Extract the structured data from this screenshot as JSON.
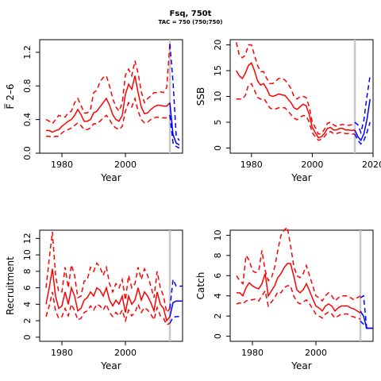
{
  "header": {
    "title": "Fsq, 750t",
    "subtitle": "TAC = 750 (750;750)"
  },
  "chart_data": [
    {
      "type": "line",
      "id": "F",
      "xlabel": "Year",
      "ylabel": "F̅ 2–6",
      "xlim": [
        1973,
        2018
      ],
      "ylim": [
        0,
        1.35
      ],
      "xticks": [
        1980,
        2000
      ],
      "yticks": [
        0,
        0.4,
        0.8,
        1.2
      ],
      "ytick_labels": [
        "0.0",
        "0.4",
        "0.8",
        "1.2"
      ],
      "vline_x": 2014,
      "history_color": "#ff0000",
      "projection_color": "#0000ff",
      "history": {
        "x": [
          1975,
          1976,
          1977,
          1978,
          1979,
          1980,
          1981,
          1982,
          1983,
          1984,
          1985,
          1986,
          1987,
          1988,
          1989,
          1990,
          1991,
          1992,
          1993,
          1994,
          1995,
          1996,
          1997,
          1998,
          1999,
          2000,
          2001,
          2002,
          2003,
          2004,
          2005,
          2006,
          2007,
          2008,
          2009,
          2010,
          2011,
          2012,
          2013,
          2014
        ],
        "median": [
          0.27,
          0.27,
          0.25,
          0.27,
          0.28,
          0.32,
          0.35,
          0.38,
          0.4,
          0.45,
          0.52,
          0.46,
          0.38,
          0.38,
          0.4,
          0.48,
          0.5,
          0.55,
          0.6,
          0.65,
          0.57,
          0.46,
          0.4,
          0.38,
          0.45,
          0.7,
          0.82,
          0.76,
          0.92,
          0.72,
          0.55,
          0.47,
          0.48,
          0.52,
          0.55,
          0.57,
          0.57,
          0.56,
          0.56,
          0.6
        ],
        "upper": [
          0.4,
          0.38,
          0.35,
          0.4,
          0.45,
          0.44,
          0.43,
          0.48,
          0.5,
          0.6,
          0.65,
          0.57,
          0.48,
          0.48,
          0.52,
          0.72,
          0.75,
          0.85,
          0.9,
          0.92,
          0.8,
          0.65,
          0.55,
          0.5,
          0.6,
          0.93,
          1.0,
          0.92,
          1.1,
          0.95,
          0.73,
          0.6,
          0.65,
          0.68,
          0.72,
          0.72,
          0.73,
          0.72,
          0.78,
          1.3
        ],
        "lower": [
          0.2,
          0.2,
          0.19,
          0.2,
          0.2,
          0.24,
          0.27,
          0.28,
          0.3,
          0.33,
          0.36,
          0.33,
          0.28,
          0.28,
          0.3,
          0.35,
          0.35,
          0.38,
          0.42,
          0.45,
          0.4,
          0.33,
          0.3,
          0.28,
          0.32,
          0.5,
          0.6,
          0.55,
          0.65,
          0.5,
          0.4,
          0.36,
          0.37,
          0.4,
          0.42,
          0.43,
          0.42,
          0.42,
          0.42,
          0.45
        ]
      },
      "projection": {
        "x": [
          2014,
          2015,
          2016,
          2017
        ],
        "median": [
          0.6,
          0.22,
          0.12,
          0.1
        ],
        "upper": [
          1.3,
          0.85,
          0.2,
          0.15
        ],
        "lower": [
          0.45,
          0.12,
          0.08,
          0.06
        ]
      }
    },
    {
      "type": "line",
      "id": "SSB",
      "xlabel": "Year",
      "ylabel": "SSB",
      "xlim": [
        1973,
        2020
      ],
      "ylim": [
        -1,
        21
      ],
      "xticks": [
        1980,
        2000,
        2020
      ],
      "yticks": [
        0,
        5,
        10,
        15,
        20
      ],
      "ytick_labels": [
        "0",
        "5",
        "10",
        "15",
        "20"
      ],
      "vline_x": 2014,
      "history_color": "#ff0000",
      "projection_color": "#0000ff",
      "history": {
        "x": [
          1975,
          1976,
          1977,
          1978,
          1979,
          1980,
          1981,
          1982,
          1983,
          1984,
          1985,
          1986,
          1987,
          1988,
          1989,
          1990,
          1991,
          1992,
          1993,
          1994,
          1995,
          1996,
          1997,
          1998,
          1999,
          2000,
          2001,
          2002,
          2003,
          2004,
          2005,
          2006,
          2007,
          2008,
          2009,
          2010,
          2011,
          2012,
          2013,
          2014
        ],
        "median": [
          15,
          14,
          13.5,
          14.5,
          16,
          16.5,
          15,
          13,
          12.2,
          12.5,
          11.5,
          10.2,
          10,
          10.2,
          10.5,
          10.3,
          10.2,
          9.5,
          8.8,
          7.8,
          7.5,
          8,
          8.5,
          8.2,
          6.5,
          4,
          3,
          2,
          2.2,
          2.8,
          3.8,
          4,
          3.5,
          3.5,
          3.8,
          3.8,
          3.5,
          3.5,
          3.4,
          3.5
        ],
        "upper": [
          20.5,
          18,
          17.5,
          18,
          20,
          20,
          18,
          16,
          14.8,
          14.8,
          13.5,
          12.5,
          12.5,
          13,
          13.5,
          13.5,
          13.2,
          12.5,
          11.5,
          10,
          9.5,
          10,
          10,
          9.8,
          8,
          5,
          4,
          2.7,
          2.8,
          3.6,
          4.8,
          5,
          4.5,
          4.2,
          4.4,
          4.6,
          4.4,
          4.4,
          4.5,
          4.6
        ],
        "lower": [
          9.5,
          9.5,
          9.5,
          10.2,
          12.2,
          12.5,
          11.2,
          9.8,
          9.5,
          9.6,
          8.8,
          7.8,
          7.5,
          7.6,
          7.8,
          7.8,
          7.8,
          7.2,
          6.5,
          5.8,
          5.5,
          6,
          6.3,
          6.2,
          5,
          3,
          2.2,
          1.5,
          1.7,
          2.2,
          3,
          3.2,
          2.8,
          2.8,
          3,
          3,
          2.8,
          2.8,
          2.7,
          2.7
        ]
      },
      "projection": {
        "x": [
          2014,
          2015,
          2016,
          2017,
          2018,
          2019
        ],
        "median": [
          3.5,
          2.2,
          1.5,
          2.8,
          5.5,
          9.5
        ],
        "upper": [
          5,
          4.5,
          3,
          5.5,
          10,
          14
        ],
        "lower": [
          2.7,
          1.5,
          0.8,
          1.5,
          3,
          5
        ]
      }
    },
    {
      "type": "line",
      "id": "Recruitment",
      "xlabel": "Year",
      "ylabel": "Recruitment",
      "xlim": [
        1973,
        2018
      ],
      "ylim": [
        -0.5,
        13
      ],
      "xticks": [
        1980,
        2000
      ],
      "yticks": [
        0,
        2,
        4,
        6,
        8,
        10,
        12
      ],
      "ytick_labels": [
        "0",
        "2",
        "4",
        "6",
        "8",
        "10",
        "12"
      ],
      "vline_x": 2014,
      "history_color": "#ff0000",
      "projection_color": "#0000ff",
      "history": {
        "x": [
          1975,
          1976,
          1977,
          1978,
          1979,
          1980,
          1981,
          1982,
          1983,
          1984,
          1985,
          1986,
          1987,
          1988,
          1989,
          1990,
          1991,
          1992,
          1993,
          1994,
          1995,
          1996,
          1997,
          1998,
          1999,
          2000,
          2001,
          2002,
          2003,
          2004,
          2005,
          2006,
          2007,
          2008,
          2009,
          2010,
          2011,
          2012,
          2013,
          2014
        ],
        "median": [
          4,
          6,
          8.3,
          5,
          3.5,
          3.8,
          5.5,
          4,
          6,
          5,
          3.2,
          3.5,
          4.5,
          4.8,
          5.5,
          5,
          6,
          5.7,
          5,
          6,
          4.5,
          3.8,
          4.5,
          4,
          5,
          3,
          5,
          4,
          4.5,
          6,
          4.5,
          5.5,
          5,
          4.2,
          3.2,
          5.5,
          4,
          3.5,
          2,
          2.5
        ],
        "upper": [
          6,
          9.5,
          12.8,
          7.5,
          5.5,
          5.5,
          8.5,
          6,
          8.8,
          7.5,
          4.8,
          5,
          6.8,
          7,
          8.5,
          8,
          9,
          8.5,
          7.5,
          8.5,
          6.5,
          5.5,
          6.5,
          6,
          7,
          4.5,
          7.5,
          6,
          6.5,
          8.5,
          7,
          8.3,
          7.5,
          6.2,
          4.8,
          8,
          6,
          5,
          3,
          3.5
        ],
        "lower": [
          2.5,
          3.8,
          5.5,
          3.2,
          2.3,
          2.5,
          3.5,
          2.6,
          4,
          3.2,
          2.1,
          2.3,
          3,
          3.2,
          3.8,
          3.3,
          4,
          3.8,
          3.3,
          4,
          3,
          2.5,
          3,
          2.6,
          3.3,
          2,
          3.3,
          2.6,
          3,
          4,
          3,
          3.6,
          3.3,
          2.8,
          2.1,
          3.6,
          2.6,
          2.3,
          1.5,
          1.7
        ]
      },
      "projection": {
        "x": [
          2014,
          2015,
          2016,
          2017,
          2018
        ],
        "median": [
          2.5,
          4.2,
          4.4,
          4.4,
          4.4
        ],
        "upper": [
          3.5,
          7,
          6.2,
          6.2,
          6.2
        ],
        "lower": [
          1.7,
          2.4,
          2.5,
          2.5,
          2.5
        ]
      }
    },
    {
      "type": "line",
      "id": "Catch",
      "xlabel": "Year",
      "ylabel": "Catch",
      "xlim": [
        1973,
        2018
      ],
      "ylim": [
        -0.5,
        10.5
      ],
      "xticks": [
        1980,
        2000
      ],
      "yticks": [
        0,
        2,
        4,
        6,
        8,
        10
      ],
      "ytick_labels": [
        "0",
        "2",
        "4",
        "6",
        "8",
        "10"
      ],
      "vline_x": 2014,
      "history_color": "#ff0000",
      "projection_color": "#0000ff",
      "history": {
        "x": [
          1975,
          1976,
          1977,
          1978,
          1979,
          1980,
          1981,
          1982,
          1983,
          1984,
          1985,
          1986,
          1987,
          1988,
          1989,
          1990,
          1991,
          1992,
          1993,
          1994,
          1995,
          1996,
          1997,
          1998,
          1999,
          2000,
          2001,
          2002,
          2003,
          2004,
          2005,
          2006,
          2007,
          2008,
          2009,
          2010,
          2011,
          2012,
          2013,
          2014
        ],
        "median": [
          4.3,
          4.3,
          4,
          4.8,
          5.3,
          5,
          4.8,
          4.7,
          5.2,
          6.2,
          4,
          4.5,
          5,
          5.8,
          6.2,
          6.8,
          7.2,
          7.2,
          6,
          4.6,
          4.3,
          4.6,
          5.2,
          4.5,
          3.7,
          3,
          2.8,
          2.5,
          3,
          3.2,
          3,
          2.5,
          2.8,
          3,
          3,
          3,
          2.8,
          2.7,
          2.5,
          2.3
        ],
        "upper": [
          6,
          5.5,
          5.2,
          8,
          7.5,
          6.5,
          6.3,
          6.5,
          8.5,
          6.5,
          5.5,
          5.8,
          6.8,
          8.5,
          10,
          10.5,
          10.8,
          9,
          7,
          6,
          5.8,
          6.2,
          7,
          6,
          5,
          4,
          3.8,
          3.5,
          4,
          4.3,
          4,
          3.5,
          3.8,
          4,
          4,
          4,
          3.8,
          3.6,
          3.8,
          4
        ],
        "lower": [
          3.2,
          3.3,
          3.2,
          3.5,
          3.6,
          3.6,
          3.7,
          3.5,
          4,
          4.5,
          3,
          3.4,
          3.8,
          4.4,
          4.3,
          4.8,
          5,
          5,
          4,
          3.4,
          3.2,
          3.4,
          3.6,
          3.2,
          2.7,
          2.2,
          2,
          1.8,
          2.2,
          2.4,
          2.2,
          1.8,
          2,
          2.2,
          2.2,
          2.2,
          2,
          1.9,
          1.8,
          1.7
        ]
      },
      "projection": {
        "x": [
          2014,
          2015,
          2016,
          2017,
          2018
        ],
        "median": [
          2.5,
          2,
          0.8,
          0.8,
          0.8
        ],
        "upper": [
          3.8,
          4,
          0.8,
          0.8,
          0.8
        ],
        "lower": [
          1.5,
          1.2,
          0.8,
          0.8,
          0.8
        ]
      }
    }
  ]
}
